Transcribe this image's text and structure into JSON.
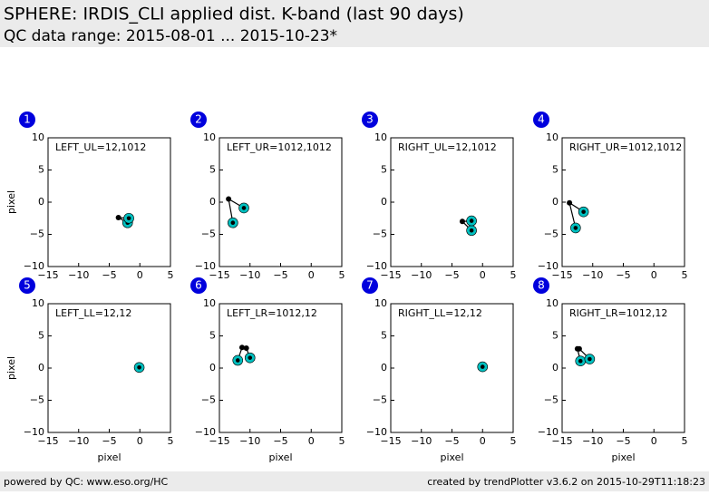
{
  "header": {
    "title": "SPHERE: IRDIS_CLI applied dist. K-band (last 90 days)",
    "subtitle": "QC data range: 2015-08-01 ... 2015-10-23*"
  },
  "footer": {
    "left": "powered by QC: www.eso.org/HC",
    "right": "created by trendPlotter v3.6.2 on 2015-10-29T11:18:23"
  },
  "chart_data": [
    {
      "type": "scatter",
      "badge": "1",
      "annotation": "LEFT_UL=12,1012",
      "ylabel": "pixel",
      "xlim": [
        -15,
        5
      ],
      "ylim": [
        -10,
        10
      ],
      "xticks": [
        {
          "value": -15,
          "label": "−15"
        },
        {
          "value": -10,
          "label": "−10"
        },
        {
          "value": -5,
          "label": "−5"
        },
        0,
        5
      ],
      "yticks": [
        {
          "value": -10,
          "label": "−10"
        },
        {
          "value": -5,
          "label": "−5"
        },
        0,
        5,
        10
      ],
      "series": [
        {
          "color": "#000000",
          "x": [
            -3.5
          ],
          "values": [
            -2.4
          ]
        },
        {
          "color": "#00c0c0",
          "x": [
            -2,
            -1.8
          ],
          "values": [
            -3.2,
            -2.5
          ]
        }
      ]
    },
    {
      "type": "scatter",
      "badge": "2",
      "annotation": "LEFT_UR=1012,1012",
      "xlim": [
        -15,
        5
      ],
      "ylim": [
        -10,
        10
      ],
      "xticks": [
        {
          "value": -15,
          "label": "−15"
        },
        {
          "value": -10,
          "label": "−10"
        },
        {
          "value": -5,
          "label": "−5"
        },
        0,
        5
      ],
      "yticks": [
        {
          "value": -10,
          "label": "−10"
        },
        {
          "value": -5,
          "label": "−5"
        },
        0,
        5,
        10
      ],
      "series": [
        {
          "color": "#000000",
          "x": [
            -13.5
          ],
          "values": [
            0.5
          ]
        },
        {
          "color": "#00c0c0",
          "x": [
            -12.8,
            -11
          ],
          "values": [
            -3.2,
            -0.9
          ]
        }
      ]
    },
    {
      "type": "scatter",
      "badge": "3",
      "annotation": "RIGHT_UL=12,1012",
      "xlim": [
        -15,
        5
      ],
      "ylim": [
        -10,
        10
      ],
      "xticks": [
        {
          "value": -15,
          "label": "−15"
        },
        {
          "value": -10,
          "label": "−10"
        },
        {
          "value": -5,
          "label": "−5"
        },
        0,
        5
      ],
      "yticks": [
        {
          "value": -10,
          "label": "−10"
        },
        {
          "value": -5,
          "label": "−5"
        },
        0,
        5,
        10
      ],
      "series": [
        {
          "color": "#000000",
          "x": [
            -3.3
          ],
          "values": [
            -3
          ]
        },
        {
          "color": "#00c0c0",
          "x": [
            -1.8,
            -1.8
          ],
          "values": [
            -4.4,
            -2.9
          ]
        }
      ]
    },
    {
      "type": "scatter",
      "badge": "4",
      "annotation": "RIGHT_UR=1012,1012",
      "xlim": [
        -15,
        5
      ],
      "ylim": [
        -10,
        10
      ],
      "xticks": [
        {
          "value": -15,
          "label": "−15"
        },
        {
          "value": -10,
          "label": "−10"
        },
        {
          "value": -5,
          "label": "−5"
        },
        0,
        5
      ],
      "yticks": [
        {
          "value": -10,
          "label": "−10"
        },
        {
          "value": -5,
          "label": "−5"
        },
        0,
        5,
        10
      ],
      "series": [
        {
          "color": "#000000",
          "x": [
            -13.8
          ],
          "values": [
            -0.1
          ]
        },
        {
          "color": "#00c0c0",
          "x": [
            -12.8,
            -11.5
          ],
          "values": [
            -4,
            -1.5
          ]
        }
      ]
    },
    {
      "type": "scatter",
      "badge": "5",
      "annotation": "LEFT_LL=12,12",
      "ylabel": "pixel",
      "xlabel": "pixel",
      "xlim": [
        -15,
        5
      ],
      "ylim": [
        -10,
        10
      ],
      "xticks": [
        {
          "value": -15,
          "label": "−15"
        },
        {
          "value": -10,
          "label": "−10"
        },
        {
          "value": -5,
          "label": "−5"
        },
        0,
        5
      ],
      "yticks": [
        {
          "value": -10,
          "label": "−10"
        },
        {
          "value": -5,
          "label": "−5"
        },
        0,
        5,
        10
      ],
      "series": [
        {
          "color": "#000000",
          "x": [
            -0.1
          ],
          "values": [
            0.1
          ]
        },
        {
          "color": "#00c0c0",
          "x": [
            -0.1
          ],
          "values": [
            0.1
          ]
        }
      ]
    },
    {
      "type": "scatter",
      "badge": "6",
      "annotation": "LEFT_LR=1012,12",
      "xlabel": "pixel",
      "xlim": [
        -15,
        5
      ],
      "ylim": [
        -10,
        10
      ],
      "xticks": [
        {
          "value": -15,
          "label": "−15"
        },
        {
          "value": -10,
          "label": "−10"
        },
        {
          "value": -5,
          "label": "−5"
        },
        0,
        5
      ],
      "yticks": [
        {
          "value": -10,
          "label": "−10"
        },
        {
          "value": -5,
          "label": "−5"
        },
        0,
        5,
        10
      ],
      "series": [
        {
          "color": "#000000",
          "x": [
            -11.3,
            -10.6
          ],
          "values": [
            3.2,
            3.1
          ]
        },
        {
          "color": "#00c0c0",
          "x": [
            -12,
            -10
          ],
          "values": [
            1.2,
            1.6
          ]
        }
      ]
    },
    {
      "type": "scatter",
      "badge": "7",
      "annotation": "RIGHT_LL=12,12",
      "xlabel": "pixel",
      "xlim": [
        -15,
        5
      ],
      "ylim": [
        -10,
        10
      ],
      "xticks": [
        {
          "value": -15,
          "label": "−15"
        },
        {
          "value": -10,
          "label": "−10"
        },
        {
          "value": -5,
          "label": "−5"
        },
        0,
        5
      ],
      "yticks": [
        {
          "value": -10,
          "label": "−10"
        },
        {
          "value": -5,
          "label": "−5"
        },
        0,
        5,
        10
      ],
      "series": [
        {
          "color": "#000000",
          "x": [
            0
          ],
          "values": [
            0.2
          ]
        },
        {
          "color": "#00c0c0",
          "x": [
            0
          ],
          "values": [
            0.2
          ]
        }
      ]
    },
    {
      "type": "scatter",
      "badge": "8",
      "annotation": "RIGHT_LR=1012,12",
      "xlabel": "pixel",
      "xlim": [
        -15,
        5
      ],
      "ylim": [
        -10,
        10
      ],
      "xticks": [
        {
          "value": -15,
          "label": "−15"
        },
        {
          "value": -10,
          "label": "−10"
        },
        {
          "value": -5,
          "label": "−5"
        },
        0,
        5
      ],
      "yticks": [
        {
          "value": -10,
          "label": "−10"
        },
        {
          "value": -5,
          "label": "−5"
        },
        0,
        5,
        10
      ],
      "series": [
        {
          "color": "#000000",
          "x": [
            -12.5,
            -12.2
          ],
          "values": [
            3,
            3
          ]
        },
        {
          "color": "#00c0c0",
          "x": [
            -12,
            -10.5
          ],
          "values": [
            1.1,
            1.4
          ]
        }
      ]
    }
  ]
}
